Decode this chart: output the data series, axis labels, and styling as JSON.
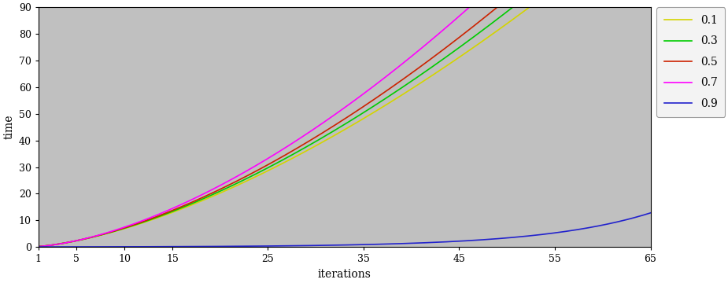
{
  "title": "",
  "xlabel": "iterations",
  "ylabel": "time",
  "xlim": [
    1,
    65
  ],
  "ylim": [
    0,
    90
  ],
  "xticks": [
    1,
    5,
    10,
    15,
    25,
    35,
    45,
    55,
    65
  ],
  "yticks": [
    0,
    10,
    20,
    30,
    40,
    50,
    60,
    70,
    80,
    90
  ],
  "background_color": "#c0c0c0",
  "series": [
    {
      "label": "0.1",
      "color": "#d4d400",
      "type": "power",
      "scale": 0.195,
      "power": 1.55
    },
    {
      "label": "0.3",
      "color": "#00cc00",
      "type": "power",
      "scale": 0.19,
      "power": 1.57
    },
    {
      "label": "0.5",
      "color": "#cc2200",
      "type": "power",
      "scale": 0.185,
      "power": 1.59
    },
    {
      "label": "0.7",
      "color": "#ff00ff",
      "type": "power",
      "scale": 0.175,
      "power": 1.63
    },
    {
      "label": "0.9",
      "color": "#2222cc",
      "type": "exp",
      "a": 0.042,
      "b": 0.088
    }
  ],
  "figsize": [
    9.25,
    3.6
  ],
  "dpi": 100
}
